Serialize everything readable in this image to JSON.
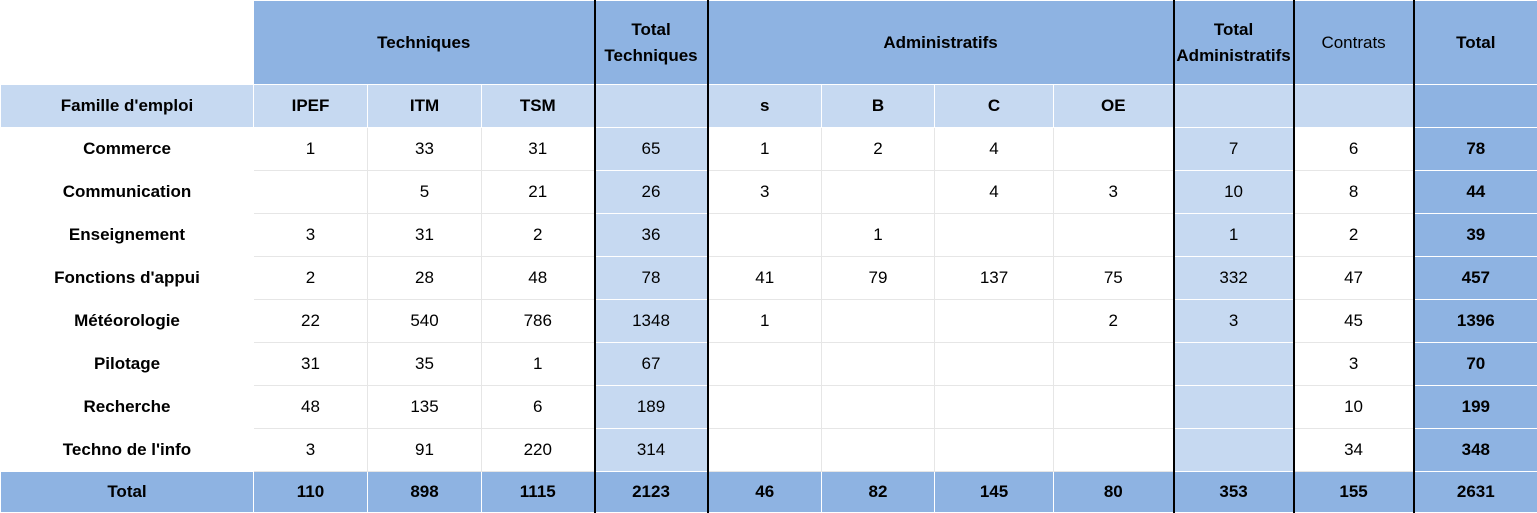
{
  "header": {
    "group_techniques": "Techniques",
    "total_techniques": "Total Techniques",
    "group_administratifs": "Administratifs",
    "total_administratifs": "Total Administratifs",
    "contrats": "Contrats",
    "total": "Total"
  },
  "subheader": {
    "famille": "Famille d'emploi",
    "ipef": "IPEF",
    "itm": "ITM",
    "tsm": "TSM",
    "s": "s",
    "b": "B",
    "c": "C",
    "oe": "OE"
  },
  "rows": [
    {
      "famille": "Commerce",
      "ipef": "1",
      "itm": "33",
      "tsm": "31",
      "total_tech": "65",
      "s": "1",
      "b": "2",
      "c": "4",
      "oe": "",
      "total_admin": "7",
      "contrats": "6",
      "total": "78"
    },
    {
      "famille": "Communication",
      "ipef": "",
      "itm": "5",
      "tsm": "21",
      "total_tech": "26",
      "s": "3",
      "b": "",
      "c": "4",
      "oe": "3",
      "total_admin": "10",
      "contrats": "8",
      "total": "44"
    },
    {
      "famille": "Enseignement",
      "ipef": "3",
      "itm": "31",
      "tsm": "2",
      "total_tech": "36",
      "s": "",
      "b": "1",
      "c": "",
      "oe": "",
      "total_admin": "1",
      "contrats": "2",
      "total": "39"
    },
    {
      "famille": "Fonctions d'appui",
      "ipef": "2",
      "itm": "28",
      "tsm": "48",
      "total_tech": "78",
      "s": "41",
      "b": "79",
      "c": "137",
      "oe": "75",
      "total_admin": "332",
      "contrats": "47",
      "total": "457"
    },
    {
      "famille": "Météorologie",
      "ipef": "22",
      "itm": "540",
      "tsm": "786",
      "total_tech": "1348",
      "s": "1",
      "b": "",
      "c": "",
      "oe": "2",
      "total_admin": "3",
      "contrats": "45",
      "total": "1396"
    },
    {
      "famille": "Pilotage",
      "ipef": "31",
      "itm": "35",
      "tsm": "1",
      "total_tech": "67",
      "s": "",
      "b": "",
      "c": "",
      "oe": "",
      "total_admin": "",
      "contrats": "3",
      "total": "70"
    },
    {
      "famille": "Recherche",
      "ipef": "48",
      "itm": "135",
      "tsm": "6",
      "total_tech": "189",
      "s": "",
      "b": "",
      "c": "",
      "oe": "",
      "total_admin": "",
      "contrats": "10",
      "total": "199"
    },
    {
      "famille": "Techno de l'info",
      "ipef": "3",
      "itm": "91",
      "tsm": "220",
      "total_tech": "314",
      "s": "",
      "b": "",
      "c": "",
      "oe": "",
      "total_admin": "",
      "contrats": "34",
      "total": "348"
    }
  ],
  "totals": {
    "label": "Total",
    "ipef": "110",
    "itm": "898",
    "tsm": "1115",
    "total_tech": "2123",
    "s": "46",
    "b": "82",
    "c": "145",
    "oe": "80",
    "total_admin": "353",
    "contrats": "155",
    "total": "2631"
  },
  "colors": {
    "header_dark": "#8eb3e2",
    "header_light": "#c6d9f1",
    "cell": "#ffffff"
  }
}
